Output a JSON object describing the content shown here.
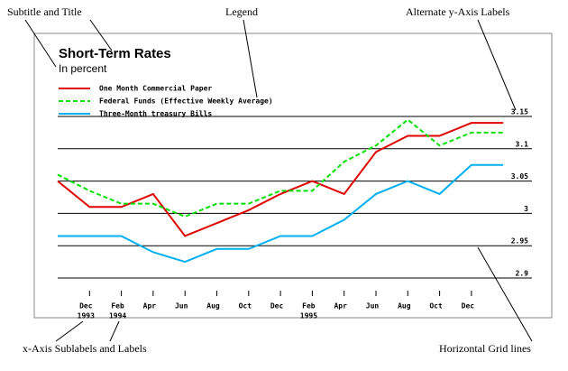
{
  "chart_data": {
    "type": "line",
    "title": "Short-Term Rates",
    "subtitle": "In percent",
    "categories": [
      null,
      "Dec",
      "Feb",
      "Apr",
      "Jun",
      "Aug",
      "Oct",
      "Dec",
      "Feb",
      "Apr",
      "Jun",
      "Aug",
      "Oct",
      "Dec",
      null
    ],
    "x_sublabels": [
      null,
      "1993",
      "1994",
      null,
      null,
      null,
      null,
      null,
      "1995",
      null,
      null,
      null,
      null,
      null,
      null
    ],
    "series": [
      {
        "name": "One Month Commercial Paper",
        "color": "#e00000",
        "dashed": false,
        "values": [
          3.05,
          3.01,
          3.01,
          3.03,
          2.965,
          2.985,
          3.005,
          3.03,
          3.05,
          3.03,
          3.095,
          3.12,
          3.12,
          3.14,
          3.14
        ]
      },
      {
        "name": "Federal Funds (Effective Weekly Average)",
        "color": "#00e000",
        "dashed": true,
        "values": [
          3.06,
          3.035,
          3.015,
          3.015,
          2.995,
          3.015,
          3.015,
          3.035,
          3.035,
          3.08,
          3.105,
          3.145,
          3.105,
          3.125,
          3.125
        ]
      },
      {
        "name": "Three-Month treasury Bills",
        "color": "#00b0f0",
        "dashed": false,
        "values": [
          2.965,
          2.965,
          2.965,
          2.94,
          2.925,
          2.945,
          2.945,
          2.965,
          2.965,
          2.99,
          3.03,
          3.05,
          3.03,
          3.075,
          3.075
        ]
      }
    ],
    "ylim": [
      2.9,
      3.15
    ],
    "yticks": [
      2.9,
      2.95,
      3,
      3.05,
      3.1,
      3.15
    ],
    "y_axis_side": "right",
    "grid": true,
    "legend": "top-left",
    "annotations": [
      "Subtitle and Title",
      "Legend",
      "Alternate y-Axis Labels",
      "x-Axis Sublabels and Labels",
      "Horizontal Grid lines"
    ]
  }
}
